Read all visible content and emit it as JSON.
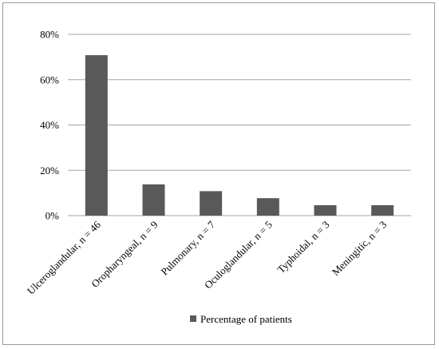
{
  "chart_data": {
    "type": "bar",
    "categories": [
      "Ulceroglandular, n = 46",
      "Oropharyngeal,  n = 9",
      "Pulmonary,  n = 7",
      "Oculoglandular,  n = 5",
      "Typhoidal,  n = 3",
      "Meningitic,  n = 3"
    ],
    "series": [
      {
        "name": "Percentage of patients",
        "values": [
          70.8,
          13.8,
          10.8,
          7.7,
          4.6,
          4.6
        ],
        "color": "#595959"
      }
    ],
    "ylim": [
      0,
      80
    ],
    "yticks": [
      0,
      20,
      40,
      60,
      80
    ],
    "ytick_labels": [
      "0%",
      "20%",
      "40%",
      "60%",
      "80%"
    ],
    "xlabel": "",
    "ylabel": "",
    "grid": true,
    "gridline_color": "#a6a6a6",
    "legend_position": "bottom",
    "title": ""
  }
}
